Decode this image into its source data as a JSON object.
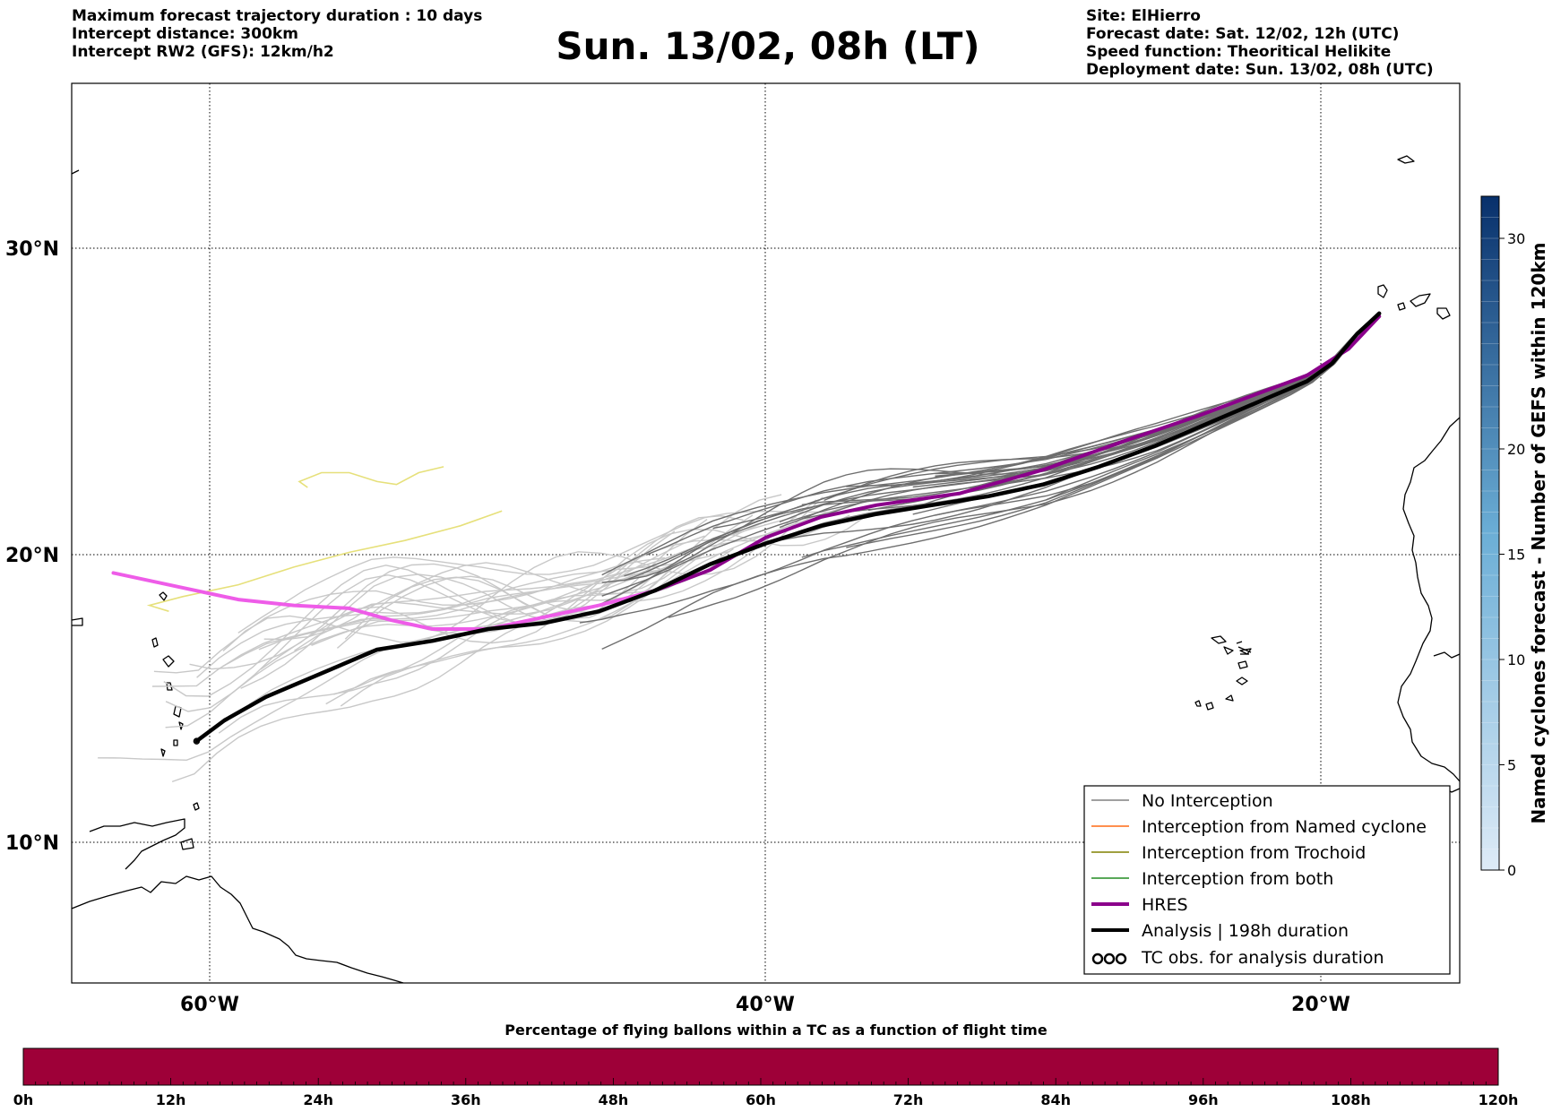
{
  "header": {
    "left_lines": [
      "Maximum forecast trajectory duration : 10 days",
      "Intercept distance: 300km",
      "Intercept RW2 (GFS):  12km/h2"
    ],
    "title": "Sun. 13/02, 08h (LT)",
    "right_lines": [
      "Site: ElHierro",
      "Forecast date: Sat. 12/02, 12h (UTC)",
      "Speed function: Theoritical Helikite",
      "Deployment date: Sun. 13/02, 08h (UTC)"
    ]
  },
  "map": {
    "lon_range": [
      -65,
      -15
    ],
    "lat_range": [
      5,
      35.5
    ],
    "lon_ticks": [
      {
        "value": -60,
        "label": "60°W"
      },
      {
        "value": -40,
        "label": "40°W"
      },
      {
        "value": -20,
        "label": "20°W"
      }
    ],
    "lat_ticks": [
      {
        "value": 30,
        "label": "30°N"
      },
      {
        "value": 20,
        "label": "20°N"
      },
      {
        "value": 10,
        "label": "10°N"
      }
    ],
    "gridlines": "dotted",
    "launch_site": {
      "lon": -17.9,
      "lat": 27.7
    },
    "analysis_trajectory": [
      [
        -17.9,
        27.7
      ],
      [
        -18.7,
        27.0
      ],
      [
        -19.6,
        26.0
      ],
      [
        -20.5,
        25.4
      ],
      [
        -22.0,
        24.8
      ],
      [
        -24.0,
        24.0
      ],
      [
        -26.0,
        23.2
      ],
      [
        -28.0,
        22.5
      ],
      [
        -30.0,
        21.9
      ],
      [
        -32.0,
        21.5
      ],
      [
        -34.0,
        21.2
      ],
      [
        -36.0,
        20.9
      ],
      [
        -38.0,
        20.5
      ],
      [
        -40.0,
        19.9
      ],
      [
        -42.0,
        19.2
      ],
      [
        -44.0,
        18.3
      ],
      [
        -46.0,
        17.6
      ],
      [
        -48.0,
        17.2
      ],
      [
        -50.0,
        17.0
      ],
      [
        -52.0,
        16.6
      ],
      [
        -54.0,
        16.3
      ],
      [
        -56.0,
        15.5
      ],
      [
        -58.0,
        14.7
      ],
      [
        -59.5,
        13.9
      ],
      [
        -60.5,
        13.2
      ]
    ],
    "hres_trajectory": [
      [
        -17.9,
        27.6
      ],
      [
        -19.0,
        26.5
      ],
      [
        -20.5,
        25.6
      ],
      [
        -22.5,
        24.9
      ],
      [
        -24.5,
        24.2
      ],
      [
        -27.0,
        23.4
      ],
      [
        -30.0,
        22.4
      ],
      [
        -33.0,
        21.6
      ],
      [
        -36.0,
        21.2
      ],
      [
        -38.0,
        20.8
      ],
      [
        -40.0,
        20.1
      ],
      [
        -42.0,
        19.0
      ],
      [
        -44.0,
        18.3
      ],
      [
        -46.0,
        17.8
      ],
      [
        -48.0,
        17.4
      ],
      [
        -50.0,
        17.0
      ],
      [
        -52.0,
        17.0
      ],
      [
        -53.5,
        17.3
      ],
      [
        -55.0,
        17.7
      ],
      [
        -57.0,
        17.8
      ],
      [
        -59.0,
        18.0
      ],
      [
        -61.0,
        18.4
      ],
      [
        -63.5,
        18.9
      ]
    ],
    "yellow_trajectory": [
      [
        -49.5,
        21.0
      ],
      [
        -51.0,
        20.5
      ],
      [
        -53.0,
        20.0
      ],
      [
        -55.0,
        19.6
      ],
      [
        -57.0,
        19.1
      ],
      [
        -59.0,
        18.5
      ],
      [
        -61.0,
        18.1
      ],
      [
        -62.2,
        17.8
      ],
      [
        -61.5,
        17.6
      ]
    ],
    "yellow_branch": [
      [
        -51.6,
        22.5
      ],
      [
        -52.5,
        22.3
      ],
      [
        -53.3,
        21.9
      ],
      [
        -54.0,
        22.0
      ],
      [
        -55.0,
        22.3
      ],
      [
        -56.0,
        22.3
      ],
      [
        -56.8,
        22.0
      ],
      [
        -56.5,
        21.8
      ]
    ]
  },
  "legend": {
    "entries": [
      {
        "label": "No Interception",
        "color": "#808080",
        "style": "thin"
      },
      {
        "label": "Interception from Named cyclone",
        "color": "#ff6a14",
        "style": "thin"
      },
      {
        "label": "Interception from Trochoid",
        "color": "#808000",
        "style": "thin"
      },
      {
        "label": "Interception from both",
        "color": "#228b22",
        "style": "thin"
      },
      {
        "label": "HRES",
        "color": "#8b008b",
        "style": "thick"
      },
      {
        "label": "Analysis | 198h duration",
        "color": "#000000",
        "style": "thick"
      },
      {
        "label": "TC obs. for analysis duration",
        "color": "#000000",
        "style": "symbol"
      }
    ]
  },
  "vertical_colorbar": {
    "label": "Named cyclones forecast - Number of GEFS within 120km",
    "ticks": [
      {
        "value": 0,
        "label": "0"
      },
      {
        "value": 5,
        "label": "5"
      },
      {
        "value": 10,
        "label": "10"
      },
      {
        "value": 15,
        "label": "15"
      },
      {
        "value": 20,
        "label": "20"
      },
      {
        "value": 30,
        "label": "30"
      }
    ],
    "color_low": "#deebf7",
    "color_high": "#08306b"
  },
  "horizontal_colorbar": {
    "title": "Percentage of flying ballons within a TC as a function of flight time",
    "fill_color": "#9e0038",
    "ticks": [
      "0h",
      "12h",
      "24h",
      "36h",
      "48h",
      "60h",
      "72h",
      "84h",
      "96h",
      "108h",
      "120h"
    ]
  },
  "colors": {
    "ensemble_no_interception": "#808080",
    "ensemble_light": "#c8c8c8",
    "hres": "#8b008b",
    "hres_extension": "#ee5ce8",
    "analysis": "#000000",
    "yellow_track": "#e6e07a"
  }
}
